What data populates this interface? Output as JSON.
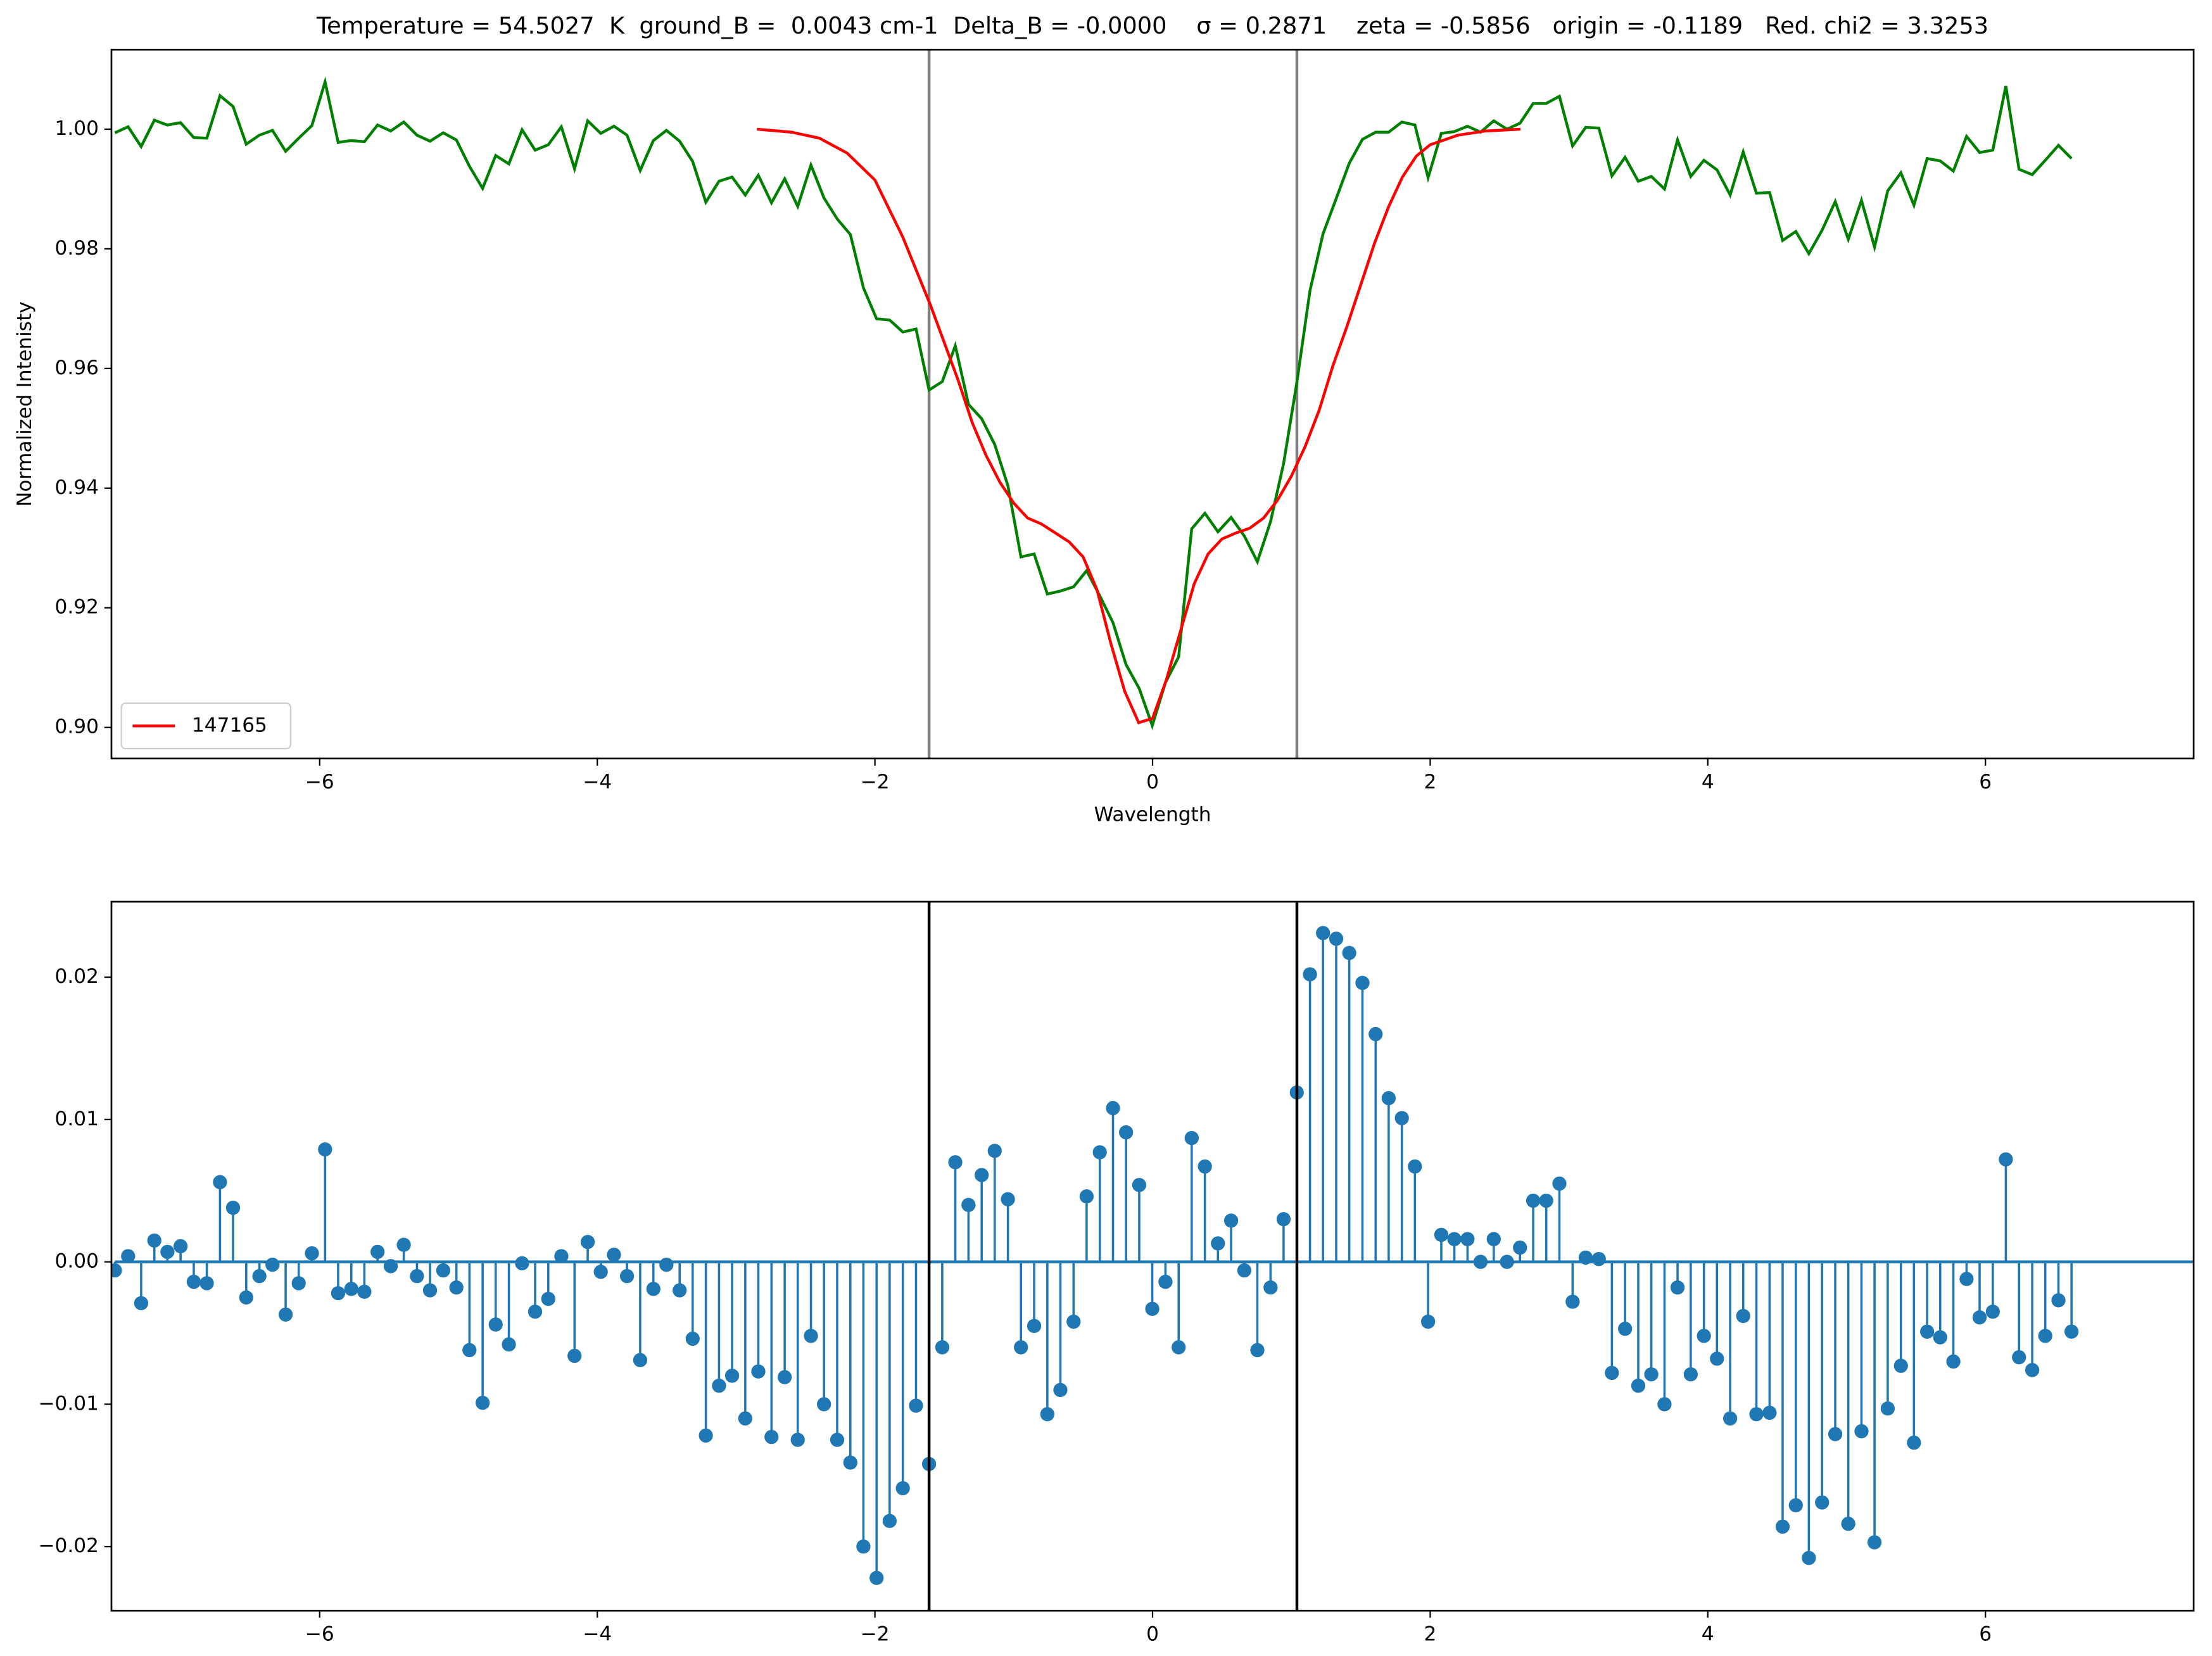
{
  "chart_data": [
    {
      "type": "line",
      "title": "Temperature = 54.5027  K  ground_B =  0.0043 cm-1  Delta_B = -0.0000    σ = 0.2871    zeta = -0.5856   origin = -0.1189   Red. chi2 = 3.3253",
      "xlabel": "Wavelength",
      "ylabel": "Normalized Intenisty",
      "xlim": [
        -7.5,
        7.5
      ],
      "ylim": [
        0.8948,
        1.0133
      ],
      "xticks": [
        {
          "value": -6,
          "label": "−6"
        },
        {
          "value": -4,
          "label": "−4"
        },
        {
          "value": -2,
          "label": "−2"
        },
        0,
        2,
        4,
        6
      ],
      "yticks": [
        {
          "value": 0.9,
          "label": "0.90"
        },
        {
          "value": 0.92,
          "label": "0.92"
        },
        {
          "value": 0.94,
          "label": "0.94"
        },
        {
          "value": 0.96,
          "label": "0.96"
        },
        {
          "value": 0.98,
          "label": "0.98"
        },
        {
          "value": 1.0,
          "label": "1.00"
        }
      ],
      "vlines": [
        -1.61,
        1.04
      ],
      "vline_color": "#808080",
      "legend": "lower left",
      "x": [
        -7.475,
        -7.38,
        -7.286,
        -7.191,
        -7.097,
        -7.002,
        -6.907,
        -6.813,
        -6.718,
        -6.624,
        -6.529,
        -6.434,
        -6.34,
        -6.245,
        -6.151,
        -6.056,
        -5.961,
        -5.867,
        -5.772,
        -5.678,
        -5.583,
        -5.488,
        -5.394,
        -5.299,
        -5.205,
        -5.11,
        -5.015,
        -4.921,
        -4.826,
        -4.732,
        -4.637,
        -4.542,
        -4.448,
        -4.353,
        -4.259,
        -4.164,
        -4.069,
        -3.975,
        -3.88,
        -3.786,
        -3.691,
        -3.596,
        -3.502,
        -3.407,
        -3.313,
        -3.218,
        -3.123,
        -3.029,
        -2.934,
        -2.84,
        -2.745,
        -2.65,
        -2.556,
        -2.461,
        -2.367,
        -2.272,
        -2.177,
        -2.083,
        -1.988,
        -1.894,
        -1.799,
        -1.704,
        -1.61,
        -1.515,
        -1.421,
        -1.326,
        -1.231,
        -1.137,
        -1.042,
        -0.948,
        -0.853,
        -0.758,
        -0.664,
        -0.569,
        -0.475,
        -0.38,
        -0.285,
        -0.191,
        -0.096,
        -0.002,
        0.093,
        0.188,
        0.282,
        0.377,
        0.471,
        0.566,
        0.661,
        0.755,
        0.85,
        0.944,
        1.039,
        1.134,
        1.228,
        1.323,
        1.417,
        1.512,
        1.607,
        1.701,
        1.796,
        1.89,
        1.985,
        2.08,
        2.174,
        2.269,
        2.363,
        2.458,
        2.553,
        2.647,
        2.742,
        2.836,
        2.931,
        3.026,
        3.12,
        3.215,
        3.309,
        3.404,
        3.499,
        3.593,
        3.688,
        3.782,
        3.877,
        3.972,
        4.066,
        4.161,
        4.255,
        4.35,
        4.445,
        4.539,
        4.634,
        4.728,
        4.823,
        4.918,
        5.012,
        5.107,
        5.201,
        5.296,
        5.391,
        5.485,
        5.58,
        5.674,
        5.769,
        5.864,
        5.958,
        6.053,
        6.147,
        6.242,
        6.337,
        6.431,
        6.526,
        6.62
      ],
      "series": [
        {
          "color": "#008000",
          "values": [
            0.9994,
            1.0004,
            0.9971,
            1.0015,
            1.0007,
            1.0011,
            0.9986,
            0.9985,
            1.0056,
            1.0038,
            0.9975,
            0.999,
            0.9998,
            0.9963,
            0.9985,
            1.0006,
            1.0079,
            0.9978,
            0.9981,
            0.9979,
            1.0007,
            0.9997,
            1.0012,
            0.999,
            0.998,
            0.9994,
            0.9982,
            0.9938,
            0.9901,
            0.9956,
            0.9942,
            0.9999,
            0.9965,
            0.9974,
            1.0004,
            0.9934,
            1.0014,
            0.9993,
            1.0005,
            0.999,
            0.9931,
            0.9981,
            0.9998,
            0.998,
            0.9946,
            0.9878,
            0.9913,
            0.992,
            0.989,
            0.9923,
            0.9877,
            0.9917,
            0.9871,
            0.994,
            0.9885,
            0.985,
            0.9824,
            0.9735,
            0.9683,
            0.9681,
            0.9661,
            0.9666,
            0.9564,
            0.9578,
            0.9638,
            0.954,
            0.9516,
            0.9473,
            0.9404,
            0.9285,
            0.929,
            0.9223,
            0.9228,
            0.9235,
            0.9262,
            0.922,
            0.9175,
            0.9105,
            0.9065,
            0.9003,
            0.9075,
            0.9118,
            0.9332,
            0.9358,
            0.9327,
            0.9351,
            0.932,
            0.9277,
            0.9344,
            0.9441,
            0.9576,
            0.973,
            0.9825,
            0.9884,
            0.9943,
            0.9983,
            0.9995,
            0.9995,
            1.0012,
            1.0007,
            0.9919,
            0.9993,
            0.9996,
            1.0005,
            0.9995,
            1.0014,
            1.0,
            1.001,
            1.0043,
            1.0043,
            1.0055,
            0.9972,
            1.0003,
            1.0002,
            0.9922,
            0.9953,
            0.9913,
            0.9921,
            0.99,
            0.9982,
            0.9921,
            0.9948,
            0.9932,
            0.989,
            0.9962,
            0.9893,
            0.9894,
            0.9814,
            0.9829,
            0.9792,
            0.9831,
            0.9879,
            0.9816,
            0.9881,
            0.9803,
            0.9897,
            0.9927,
            0.9873,
            0.9951,
            0.9947,
            0.993,
            0.9988,
            0.9961,
            0.9965,
            1.0072,
            0.9933,
            0.9924,
            0.9948,
            0.9973,
            0.9951
          ]
        },
        {
          "name": "147165",
          "color": "#ff0000",
          "x": [
            -2.85,
            -2.6,
            -2.4,
            -2.2,
            -2.0,
            -1.8,
            -1.6,
            -1.4,
            -1.3,
            -1.2,
            -1.1,
            -1.0,
            -0.9,
            -0.8,
            -0.7,
            -0.6,
            -0.5,
            -0.4,
            -0.3,
            -0.2,
            -0.1,
            0.0,
            0.1,
            0.2,
            0.3,
            0.4,
            0.5,
            0.6,
            0.7,
            0.8,
            0.9,
            1.0,
            1.1,
            1.2,
            1.3,
            1.4,
            1.5,
            1.6,
            1.7,
            1.8,
            1.9,
            2.0,
            2.2,
            2.4,
            2.65
          ],
          "values": [
            1.0,
            0.9995,
            0.9985,
            0.996,
            0.9915,
            0.982,
            0.9706,
            0.958,
            0.951,
            0.9455,
            0.941,
            0.9375,
            0.935,
            0.934,
            0.9325,
            0.931,
            0.9285,
            0.923,
            0.914,
            0.906,
            0.9008,
            0.9015,
            0.908,
            0.916,
            0.924,
            0.929,
            0.9315,
            0.9325,
            0.9333,
            0.935,
            0.938,
            0.942,
            0.947,
            0.953,
            0.9605,
            0.967,
            0.974,
            0.981,
            0.987,
            0.992,
            0.9955,
            0.9974,
            0.999,
            0.9997,
            1.0
          ]
        }
      ]
    },
    {
      "type": "stem",
      "xlim": [
        -7.5,
        7.5
      ],
      "ylim": [
        -0.0245,
        0.0253
      ],
      "xticks": [
        {
          "value": -6,
          "label": "−6"
        },
        {
          "value": -4,
          "label": "−4"
        },
        {
          "value": -2,
          "label": "−2"
        },
        0,
        2,
        4,
        6
      ],
      "yticks": [
        {
          "value": -0.02,
          "label": "−0.02"
        },
        {
          "value": -0.01,
          "label": "−0.01"
        },
        {
          "value": 0,
          "label": "0.00"
        },
        {
          "value": 0.01,
          "label": "0.01"
        },
        {
          "value": 0.02,
          "label": "0.02"
        }
      ],
      "vlines": [
        -1.61,
        1.04
      ],
      "vline_color": "#000000",
      "color": "#1f77b4",
      "baseline": 0,
      "x": [
        -7.475,
        -7.38,
        -7.286,
        -7.191,
        -7.097,
        -7.002,
        -6.907,
        -6.813,
        -6.718,
        -6.624,
        -6.529,
        -6.434,
        -6.34,
        -6.245,
        -6.151,
        -6.056,
        -5.961,
        -5.867,
        -5.772,
        -5.678,
        -5.583,
        -5.488,
        -5.394,
        -5.299,
        -5.205,
        -5.11,
        -5.015,
        -4.921,
        -4.826,
        -4.732,
        -4.637,
        -4.542,
        -4.448,
        -4.353,
        -4.259,
        -4.164,
        -4.069,
        -3.975,
        -3.88,
        -3.786,
        -3.691,
        -3.596,
        -3.502,
        -3.407,
        -3.313,
        -3.218,
        -3.123,
        -3.029,
        -2.934,
        -2.84,
        -2.745,
        -2.65,
        -2.556,
        -2.461,
        -2.367,
        -2.272,
        -2.177,
        -2.083,
        -1.988,
        -1.894,
        -1.799,
        -1.704,
        -1.61,
        -1.515,
        -1.421,
        -1.326,
        -1.231,
        -1.137,
        -1.042,
        -0.948,
        -0.853,
        -0.758,
        -0.664,
        -0.569,
        -0.475,
        -0.38,
        -0.285,
        -0.191,
        -0.096,
        -0.002,
        0.093,
        0.188,
        0.282,
        0.377,
        0.471,
        0.566,
        0.661,
        0.755,
        0.85,
        0.944,
        1.039,
        1.134,
        1.228,
        1.323,
        1.417,
        1.512,
        1.607,
        1.701,
        1.796,
        1.89,
        1.985,
        2.08,
        2.174,
        2.269,
        2.363,
        2.458,
        2.553,
        2.647,
        2.742,
        2.836,
        2.931,
        3.026,
        3.12,
        3.215,
        3.309,
        3.404,
        3.499,
        3.593,
        3.688,
        3.782,
        3.877,
        3.972,
        4.066,
        4.161,
        4.255,
        4.35,
        4.445,
        4.539,
        4.634,
        4.728,
        4.823,
        4.918,
        5.012,
        5.107,
        5.201,
        5.296,
        5.391,
        5.485,
        5.58,
        5.674,
        5.769,
        5.864,
        5.958,
        6.053,
        6.147,
        6.242,
        6.337,
        6.431,
        6.526,
        6.62
      ],
      "values": [
        -0.0006,
        0.0004,
        -0.0029,
        0.0015,
        0.0007,
        0.0011,
        -0.0014,
        -0.0015,
        0.0056,
        0.0038,
        -0.0025,
        -0.001,
        -0.0002,
        -0.0037,
        -0.0015,
        0.0006,
        0.0079,
        -0.0022,
        -0.0019,
        -0.0021,
        0.0007,
        -0.0003,
        0.0012,
        -0.001,
        -0.002,
        -0.0006,
        -0.0018,
        -0.0062,
        -0.0099,
        -0.0044,
        -0.0058,
        -0.0001,
        -0.0035,
        -0.0026,
        0.0004,
        -0.0066,
        0.0014,
        -0.0007,
        0.0005,
        -0.001,
        -0.0069,
        -0.0019,
        -0.0002,
        -0.002,
        -0.0054,
        -0.0122,
        -0.0087,
        -0.008,
        -0.011,
        -0.0077,
        -0.0123,
        -0.0081,
        -0.0125,
        -0.0052,
        -0.01,
        -0.0125,
        -0.0141,
        -0.02,
        -0.0222,
        -0.0182,
        -0.0159,
        -0.0101,
        -0.0142,
        -0.006,
        0.007,
        0.004,
        0.0061,
        0.0078,
        0.0044,
        -0.006,
        -0.0045,
        -0.0107,
        -0.009,
        -0.0042,
        0.0046,
        0.0077,
        0.0108,
        0.0091,
        0.0054,
        -0.0033,
        -0.0014,
        -0.006,
        0.0087,
        0.0067,
        0.0013,
        0.0029,
        -0.0006,
        -0.0062,
        -0.0018,
        0.003,
        0.0119,
        0.0202,
        0.0231,
        0.0227,
        0.0217,
        0.0196,
        0.016,
        0.0115,
        0.0101,
        0.0067,
        -0.0042,
        0.0019,
        0.0016,
        0.0016,
        0.0,
        0.0016,
        0.0,
        0.001,
        0.0043,
        0.0043,
        0.0055,
        -0.0028,
        0.0003,
        0.0002,
        -0.0078,
        -0.0047,
        -0.0087,
        -0.0079,
        -0.01,
        -0.0018,
        -0.0079,
        -0.0052,
        -0.0068,
        -0.011,
        -0.0038,
        -0.0107,
        -0.0106,
        -0.0186,
        -0.0171,
        -0.0208,
        -0.0169,
        -0.0121,
        -0.0184,
        -0.0119,
        -0.0197,
        -0.0103,
        -0.0073,
        -0.0127,
        -0.0049,
        -0.0053,
        -0.007,
        -0.0012,
        -0.0039,
        -0.0035,
        0.0072,
        -0.0067,
        -0.0076,
        -0.0052,
        -0.0027,
        -0.0049
      ]
    }
  ]
}
